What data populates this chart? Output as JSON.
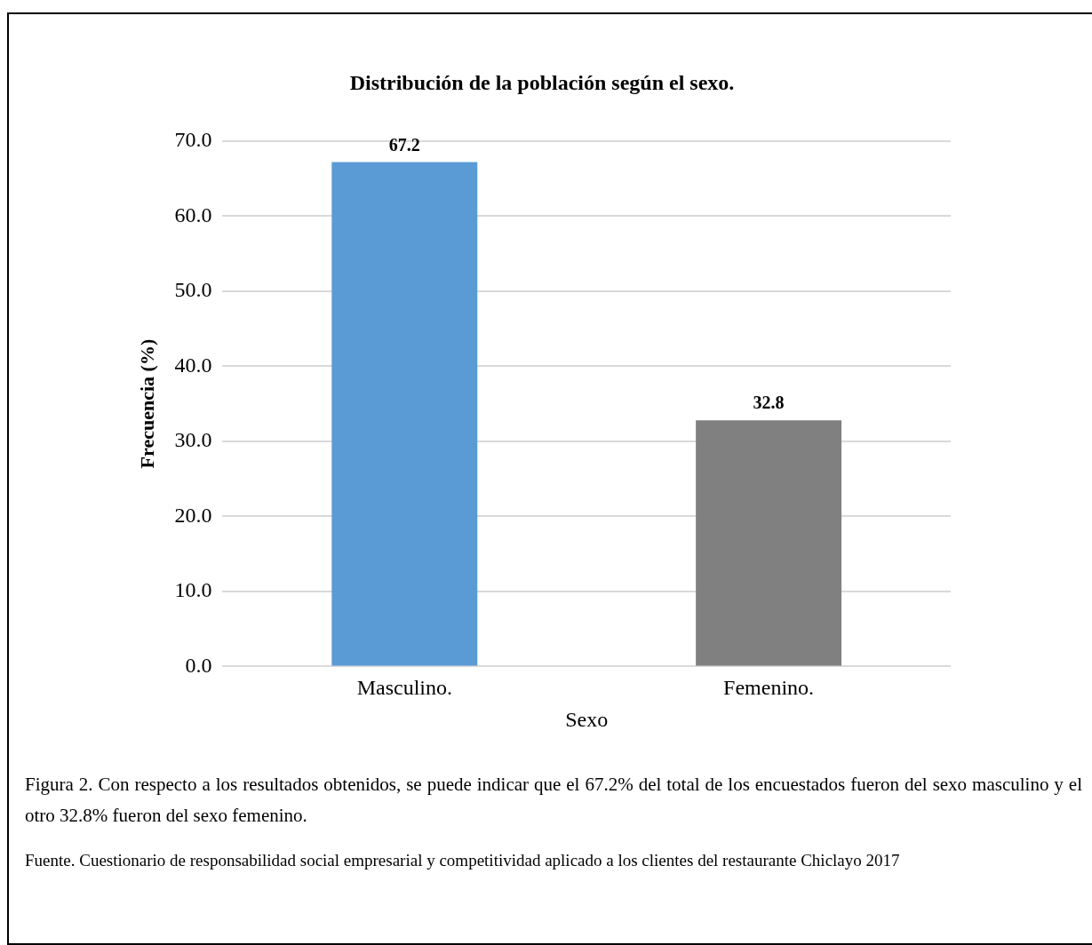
{
  "chart_data": {
    "type": "bar",
    "title": "Distribución de la población según el sexo.",
    "xlabel": "Sexo",
    "ylabel": "Frecuencia (%)",
    "categories": [
      "Masculino.",
      "Femenino."
    ],
    "values": [
      67.2,
      32.8
    ],
    "colors": [
      "#5b9bd5",
      "#808080"
    ],
    "ylim": [
      0,
      70
    ],
    "yticks": [
      {
        "value": 0,
        "label": "0.0"
      },
      {
        "value": 10,
        "label": "10.0"
      },
      {
        "value": 20,
        "label": "20.0"
      },
      {
        "value": 30,
        "label": "30.0"
      },
      {
        "value": 40,
        "label": "40.0"
      },
      {
        "value": 50,
        "label": "50.0"
      },
      {
        "value": 60,
        "label": "60.0"
      },
      {
        "value": 70,
        "label": "70.0"
      }
    ],
    "grid": "y",
    "legend": false,
    "data_labels": true,
    "annotations": [
      "Figura 2. Con respecto a los resultados obtenidos, se puede indicar que el 67.2% del total de los encuestados fueron del sexo masculino y el otro 32.8% fueron del sexo femenino.",
      "Fuente. Cuestionario de responsabilidad social empresarial y competitividad aplicado a los clientes del restaurante Chiclayo 2017"
    ]
  }
}
